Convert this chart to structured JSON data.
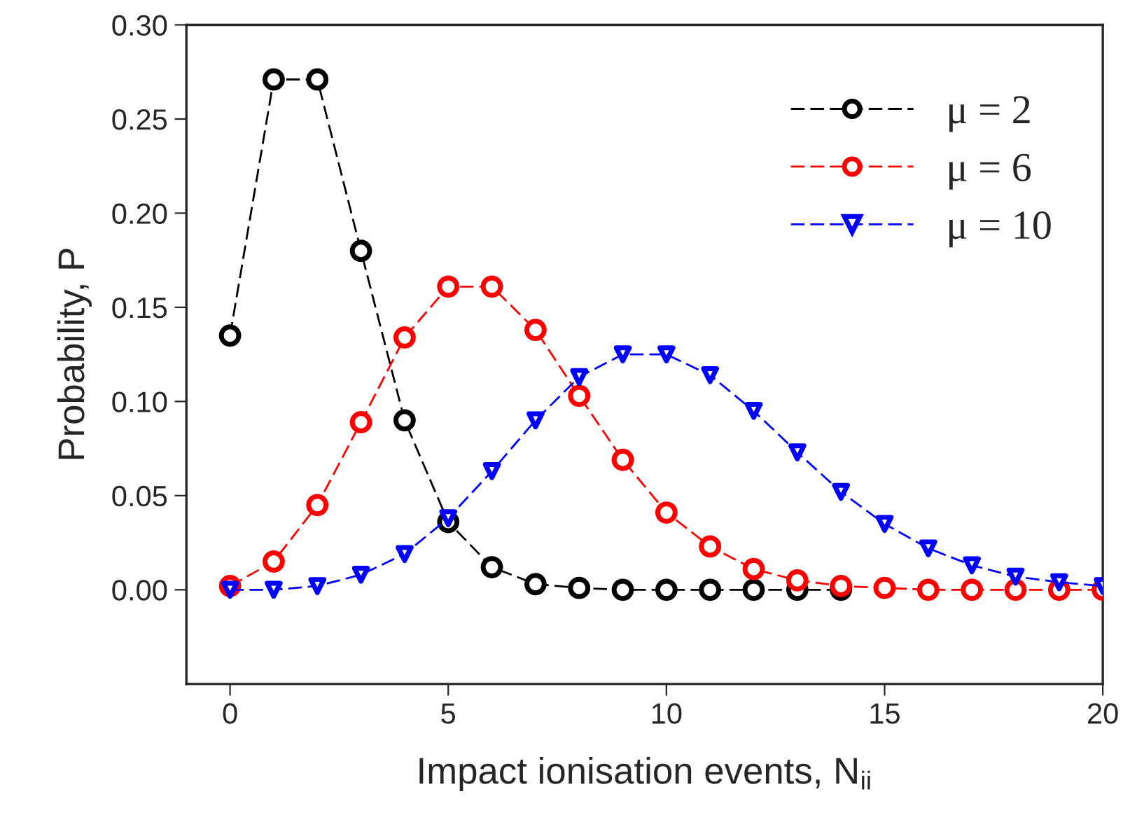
{
  "chart_data": {
    "type": "line",
    "xlabel": "Impact ionisation events, N$_{ii}$",
    "ylabel": "Probability, P",
    "xlim": [
      -1,
      20
    ],
    "xticks": [
      0,
      5,
      10,
      15,
      20
    ],
    "ylim": [
      -0.05,
      0.3
    ],
    "yticks": [
      {
        "value": 0,
        "label": "0.00"
      },
      {
        "value": 0.05,
        "label": "0.05"
      },
      {
        "value": 0.1,
        "label": "0.10"
      },
      {
        "value": 0.15,
        "label": "0.15"
      },
      {
        "value": 0.2,
        "label": "0.20"
      },
      {
        "value": 0.25,
        "label": "0.25"
      },
      {
        "value": 0.3,
        "label": "0.30"
      }
    ],
    "grid": false,
    "legend": "top right",
    "line_style": "dashed",
    "series": [
      {
        "name": "μ = 2",
        "color": "#000000",
        "marker": "circle",
        "x": [
          0,
          1,
          2,
          3,
          4,
          5,
          6,
          7,
          8,
          9,
          10,
          11,
          12,
          13,
          14
        ],
        "values": [
          0.135,
          0.271,
          0.271,
          0.18,
          0.09,
          0.036,
          0.012,
          0.003,
          0.001,
          0.0,
          0.0,
          0.0,
          0.0,
          0.0,
          0.0
        ]
      },
      {
        "name": "μ = 6",
        "color": "#ff0000",
        "marker": "circle",
        "x": [
          0,
          1,
          2,
          3,
          4,
          5,
          6,
          7,
          8,
          9,
          10,
          11,
          12,
          13,
          14,
          15,
          16,
          17,
          18,
          19,
          20
        ],
        "values": [
          0.002,
          0.015,
          0.045,
          0.089,
          0.134,
          0.161,
          0.161,
          0.138,
          0.103,
          0.069,
          0.041,
          0.023,
          0.011,
          0.005,
          0.002,
          0.001,
          0.0,
          0.0,
          0.0,
          0.0,
          0.0
        ]
      },
      {
        "name": "μ = 10",
        "color": "#0000ff",
        "marker": "triangle",
        "x": [
          0,
          1,
          2,
          3,
          4,
          5,
          6,
          7,
          8,
          9,
          10,
          11,
          12,
          13,
          14,
          15,
          16,
          17,
          18,
          19,
          20
        ],
        "values": [
          0.0,
          0.0,
          0.002,
          0.008,
          0.019,
          0.038,
          0.063,
          0.09,
          0.113,
          0.125,
          0.125,
          0.114,
          0.095,
          0.073,
          0.052,
          0.035,
          0.022,
          0.013,
          0.007,
          0.004,
          0.002
        ]
      }
    ]
  }
}
